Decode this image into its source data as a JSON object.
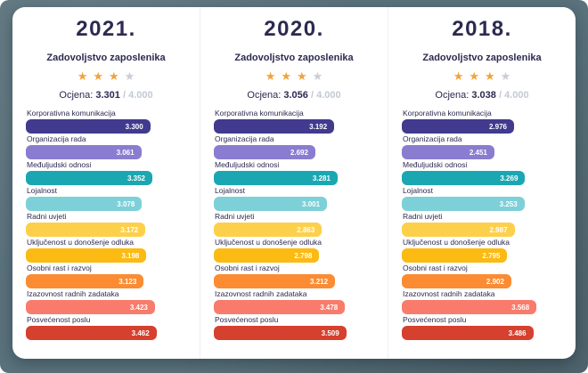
{
  "page": {
    "background_color": "#5a727c",
    "card_color": "#ffffff"
  },
  "star_colors": {
    "filled": "#f2a33c",
    "empty": "#c9ced6"
  },
  "columns": [
    {
      "year": "2021.",
      "subtitle": "Zadovoljstvo zaposlenika",
      "stars": {
        "filled": 3,
        "total": 4
      },
      "score": {
        "label": "Ocjena:",
        "value": "3.301",
        "max": "/ 4.000"
      },
      "bars": [
        {
          "label": "Korporativna komunikacija",
          "value": "3.300",
          "num": 3.3,
          "color": "#413a8e"
        },
        {
          "label": "Organizacija rada",
          "value": "3.061",
          "num": 3.061,
          "color": "#8a7cd0"
        },
        {
          "label": "Međuljudski odnosi",
          "value": "3.352",
          "num": 3.352,
          "color": "#1ba7b2"
        },
        {
          "label": "Lojalnost",
          "value": "3.078",
          "num": 3.078,
          "color": "#7dd0d8"
        },
        {
          "label": "Radni uvjeti",
          "value": "3.172",
          "num": 3.172,
          "color": "#fdd04c"
        },
        {
          "label": "Uključenost u donošenje odluka",
          "value": "3.198",
          "num": 3.198,
          "color": "#fcba12"
        },
        {
          "label": "Osobni rast i razvoj",
          "value": "3.123",
          "num": 3.123,
          "color": "#fb8c33"
        },
        {
          "label": "Izazovnost radnih zadataka",
          "value": "3.423",
          "num": 3.423,
          "color": "#f97b6b"
        },
        {
          "label": "Posvećenost poslu",
          "value": "3.462",
          "num": 3.462,
          "color": "#d6402e"
        }
      ]
    },
    {
      "year": "2020.",
      "subtitle": "Zadovoljstvo zaposlenika",
      "stars": {
        "filled": 3,
        "total": 4
      },
      "score": {
        "label": "Ocjena:",
        "value": "3.056",
        "max": "/ 4.000"
      },
      "bars": [
        {
          "label": "Korporativna komunikacija",
          "value": "3.192",
          "num": 3.192,
          "color": "#413a8e"
        },
        {
          "label": "Organizacija rada",
          "value": "2.692",
          "num": 2.692,
          "color": "#8a7cd0"
        },
        {
          "label": "Međuljudski odnosi",
          "value": "3.281",
          "num": 3.281,
          "color": "#1ba7b2"
        },
        {
          "label": "Lojalnost",
          "value": "3.001",
          "num": 3.001,
          "color": "#7dd0d8"
        },
        {
          "label": "Radni uvjeti",
          "value": "2.863",
          "num": 2.863,
          "color": "#fdd04c"
        },
        {
          "label": "Uključenost u donošenje odluka",
          "value": "2.798",
          "num": 2.798,
          "color": "#fcba12"
        },
        {
          "label": "Osobni rast i razvoj",
          "value": "3.212",
          "num": 3.212,
          "color": "#fb8c33"
        },
        {
          "label": "Izazovnost radnih zadataka",
          "value": "3.478",
          "num": 3.478,
          "color": "#f97b6b"
        },
        {
          "label": "Posvećenost poslu",
          "value": "3.509",
          "num": 3.509,
          "color": "#d6402e"
        }
      ]
    },
    {
      "year": "2018.",
      "subtitle": "Zadovoljstvo zaposlenika",
      "stars": {
        "filled": 3,
        "total": 4
      },
      "score": {
        "label": "Ocjena:",
        "value": "3.038",
        "max": "/ 4.000"
      },
      "bars": [
        {
          "label": "Korporativna komunikacija",
          "value": "2.976",
          "num": 2.976,
          "color": "#413a8e"
        },
        {
          "label": "Organizacija rada",
          "value": "2.451",
          "num": 2.451,
          "color": "#8a7cd0"
        },
        {
          "label": "Međuljudski odnosi",
          "value": "3.269",
          "num": 3.269,
          "color": "#1ba7b2"
        },
        {
          "label": "Lojalnost",
          "value": "3.253",
          "num": 3.253,
          "color": "#7dd0d8"
        },
        {
          "label": "Radni uvjeti",
          "value": "2.987",
          "num": 2.987,
          "color": "#fdd04c"
        },
        {
          "label": "Uključenost u donošenje odluka",
          "value": "2.795",
          "num": 2.795,
          "color": "#fcba12"
        },
        {
          "label": "Osobni rast i razvoj",
          "value": "2.902",
          "num": 2.902,
          "color": "#fb8c33"
        },
        {
          "label": "Izazovnost radnih zadataka",
          "value": "3.568",
          "num": 3.568,
          "color": "#f97b6b"
        },
        {
          "label": "Posvećenost poslu",
          "value": "3.486",
          "num": 3.486,
          "color": "#d6402e"
        }
      ]
    }
  ],
  "chart_data": [
    {
      "type": "bar",
      "orientation": "horizontal",
      "title": "2021.",
      "subtitle": "Zadovoljstvo zaposlenika",
      "overall_score": 3.301,
      "score_scale_max": 4.0,
      "stars_filled": 3,
      "stars_total": 4,
      "categories": [
        "Korporativna komunikacija",
        "Organizacija rada",
        "Međuljudski odnosi",
        "Lojalnost",
        "Radni uvjeti",
        "Uključenost u donošenje odluka",
        "Osobni rast i razvoj",
        "Izazovnost radnih zadataka",
        "Posvećenost poslu"
      ],
      "values": [
        3.3,
        3.061,
        3.352,
        3.078,
        3.172,
        3.198,
        3.123,
        3.423,
        3.462
      ],
      "xlim": [
        0,
        4
      ],
      "data_labels": true,
      "grid": false,
      "bar_colors": [
        "#413a8e",
        "#8a7cd0",
        "#1ba7b2",
        "#7dd0d8",
        "#fdd04c",
        "#fcba12",
        "#fb8c33",
        "#f97b6b",
        "#d6402e"
      ]
    },
    {
      "type": "bar",
      "orientation": "horizontal",
      "title": "2020.",
      "subtitle": "Zadovoljstvo zaposlenika",
      "overall_score": 3.056,
      "score_scale_max": 4.0,
      "stars_filled": 3,
      "stars_total": 4,
      "categories": [
        "Korporativna komunikacija",
        "Organizacija rada",
        "Međuljudski odnosi",
        "Lojalnost",
        "Radni uvjeti",
        "Uključenost u donošenje odluka",
        "Osobni rast i razvoj",
        "Izazovnost radnih zadataka",
        "Posvećenost poslu"
      ],
      "values": [
        3.192,
        2.692,
        3.281,
        3.001,
        2.863,
        2.798,
        3.212,
        3.478,
        3.509
      ],
      "xlim": [
        0,
        4
      ],
      "data_labels": true,
      "grid": false,
      "bar_colors": [
        "#413a8e",
        "#8a7cd0",
        "#1ba7b2",
        "#7dd0d8",
        "#fdd04c",
        "#fcba12",
        "#fb8c33",
        "#f97b6b",
        "#d6402e"
      ]
    },
    {
      "type": "bar",
      "orientation": "horizontal",
      "title": "2018.",
      "subtitle": "Zadovoljstvo zaposlenika",
      "overall_score": 3.038,
      "score_scale_max": 4.0,
      "stars_filled": 3,
      "stars_total": 4,
      "categories": [
        "Korporativna komunikacija",
        "Organizacija rada",
        "Međuljudski odnosi",
        "Lojalnost",
        "Radni uvjeti",
        "Uključenost u donošenje odluka",
        "Osobni rast i razvoj",
        "Izazovnost radnih zadataka",
        "Posvećenost poslu"
      ],
      "values": [
        2.976,
        2.451,
        3.269,
        3.253,
        2.987,
        2.795,
        2.902,
        3.568,
        3.486
      ],
      "xlim": [
        0,
        4
      ],
      "data_labels": true,
      "grid": false,
      "bar_colors": [
        "#413a8e",
        "#8a7cd0",
        "#1ba7b2",
        "#7dd0d8",
        "#fdd04c",
        "#fcba12",
        "#fb8c33",
        "#f97b6b",
        "#d6402e"
      ]
    }
  ]
}
